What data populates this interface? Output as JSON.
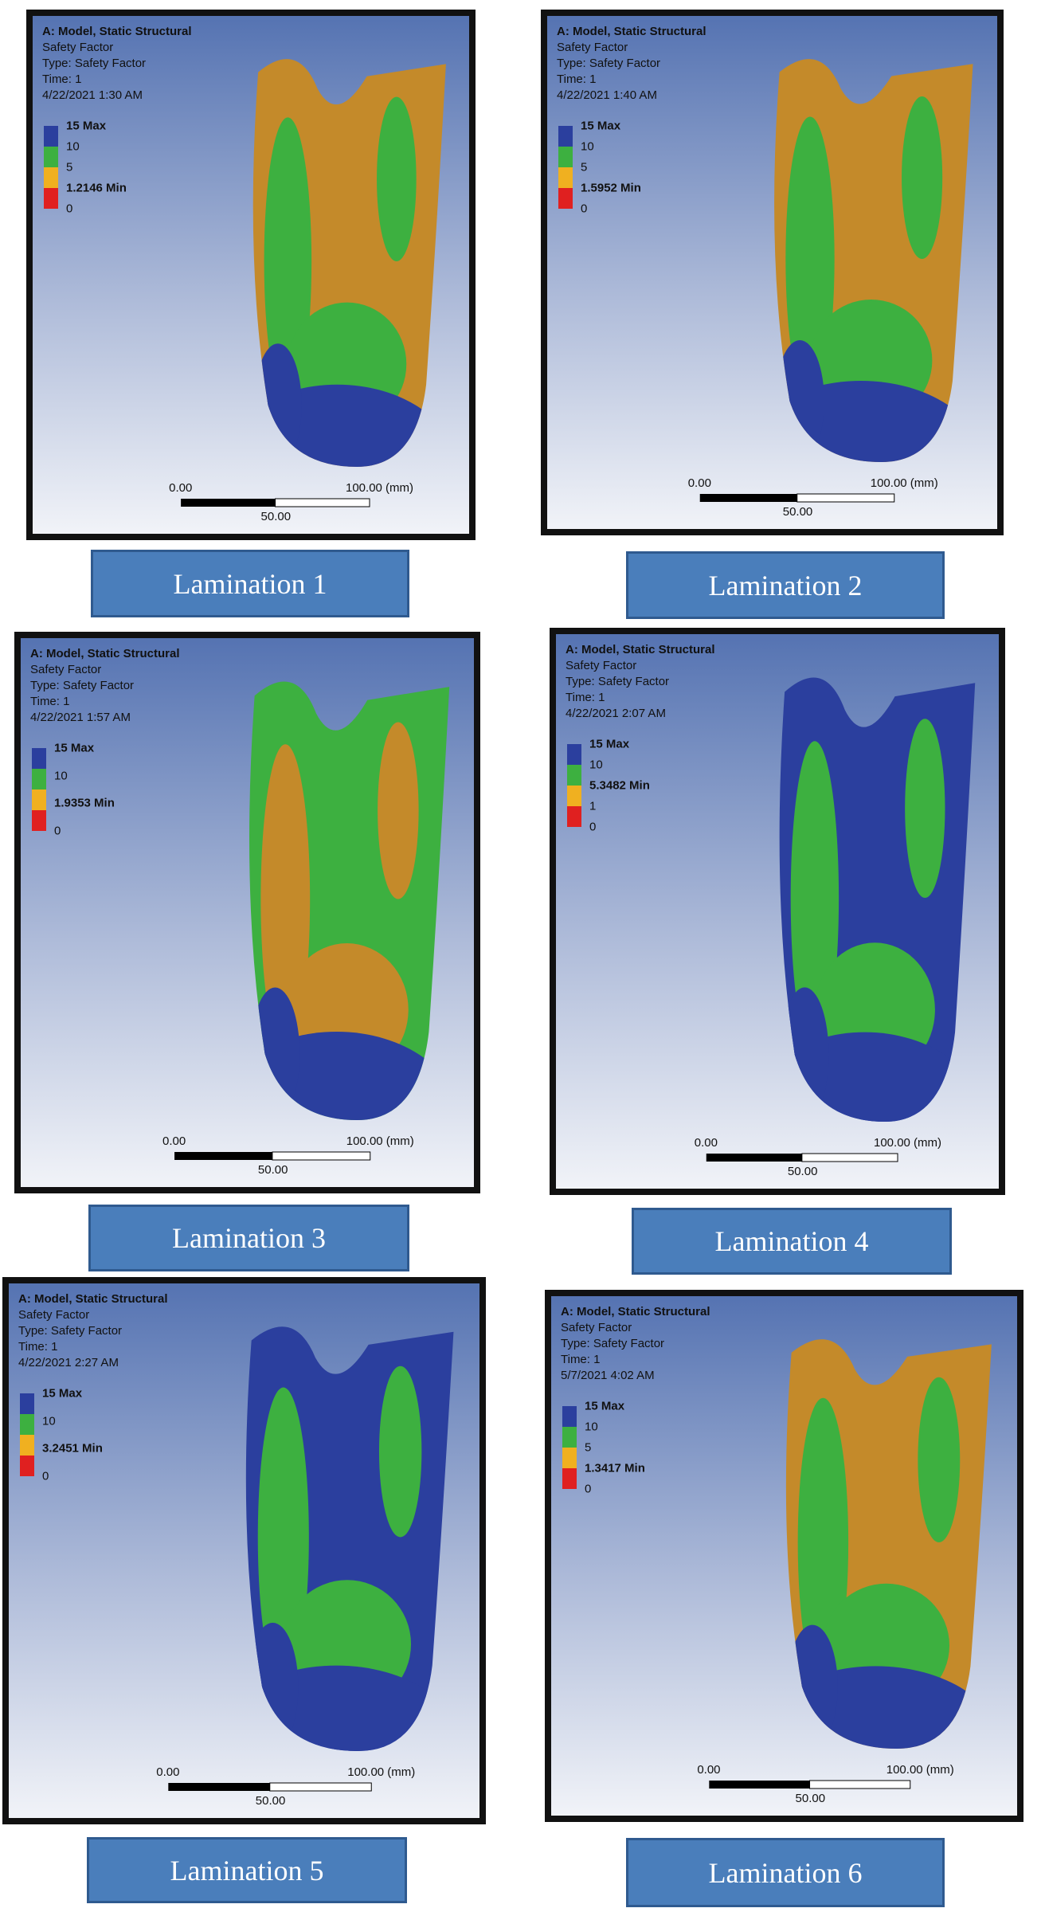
{
  "panels": [
    {
      "lines": [
        "A: Model, Static Structural",
        "Safety Factor",
        "Type: Safety Factor",
        "Time: 1",
        "4/22/2021 1:30 AM"
      ],
      "legend": [
        "15 Max",
        "10",
        "5",
        "1.2146 Min",
        "0"
      ],
      "scale": [
        "0.00",
        "100.00 (mm)",
        "50.00"
      ],
      "caption": "Lamination 1"
    },
    {
      "lines": [
        "A: Model, Static Structural",
        "Safety Factor",
        "Type: Safety Factor",
        "Time: 1",
        "4/22/2021 1:40 AM"
      ],
      "legend": [
        "15 Max",
        "10",
        "5",
        "1.5952 Min",
        "0"
      ],
      "scale": [
        "0.00",
        "100.00 (mm)",
        "50.00"
      ],
      "caption": "Lamination 2"
    },
    {
      "lines": [
        "A: Model, Static Structural",
        "Safety Factor",
        "Type: Safety Factor",
        "Time: 1",
        "4/22/2021 1:57 AM"
      ],
      "legend": [
        "15 Max",
        "10",
        "1.9353 Min",
        "0"
      ],
      "scale": [
        "0.00",
        "100.00 (mm)",
        "50.00"
      ],
      "caption": "Lamination 3"
    },
    {
      "lines": [
        "A: Model, Static Structural",
        "Safety Factor",
        "Type: Safety Factor",
        "Time: 1",
        "4/22/2021 2:07 AM"
      ],
      "legend": [
        "15 Max",
        "10",
        "5.3482 Min",
        "1",
        "0"
      ],
      "scale": [
        "0.00",
        "100.00 (mm)",
        "50.00"
      ],
      "caption": "Lamination 4"
    },
    {
      "lines": [
        "A: Model, Static Structural",
        "Safety Factor",
        "Type: Safety Factor",
        "Time: 1",
        "4/22/2021 2:27 AM"
      ],
      "legend": [
        "15 Max",
        "10",
        "3.2451 Min",
        "0"
      ],
      "scale": [
        "0.00",
        "100.00 (mm)",
        "50.00"
      ],
      "caption": "Lamination 5"
    },
    {
      "lines": [
        "A: Model, Static Structural",
        "Safety Factor",
        "Type: Safety Factor",
        "Time: 1",
        "5/7/2021 4:02 AM"
      ],
      "legend": [
        "15 Max",
        "10",
        "5",
        "1.3417 Min",
        "0"
      ],
      "scale": [
        "0.00",
        "100.00 (mm)",
        "50.00"
      ],
      "caption": "Lamination 6"
    }
  ]
}
